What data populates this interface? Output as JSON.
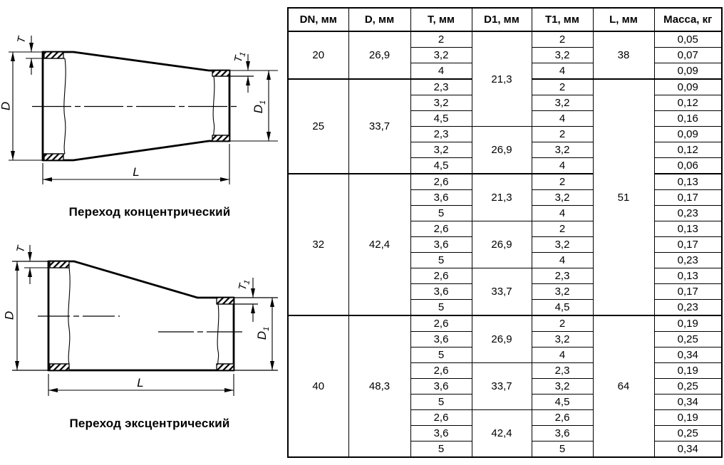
{
  "colors": {
    "line": "#000000",
    "text": "#000000",
    "background": "#ffffff"
  },
  "dim_labels": {
    "t": "T",
    "t1_main": "T",
    "t1_sub": "1",
    "d": "D",
    "d1_main": "D",
    "d1_sub": "1",
    "l": "L"
  },
  "diagrams": {
    "concentric": {
      "caption": "Переход концентрический"
    },
    "eccentric": {
      "caption": "Переход эксцентрический"
    }
  },
  "table": {
    "headers": [
      "DN, мм",
      "D, мм",
      "T, мм",
      "D1, мм",
      "T1, мм",
      "L, мм",
      "Масса, кг"
    ],
    "group_start_rows": [
      3,
      9,
      18
    ],
    "rows": [
      [
        {
          "t": "20",
          "rs": 3
        },
        {
          "t": "26,9",
          "rs": 3
        },
        {
          "t": "2"
        },
        {
          "t": "21,3",
          "rs": 6
        },
        {
          "t": "2"
        },
        {
          "t": "38",
          "rs": 3
        },
        {
          "t": "0,05"
        }
      ],
      [
        {
          "t": "3,2"
        },
        {
          "t": "3,2"
        },
        {
          "t": "0,07"
        }
      ],
      [
        {
          "t": "4"
        },
        {
          "t": "4"
        },
        {
          "t": "0,09"
        }
      ],
      [
        {
          "t": "25",
          "rs": 6
        },
        {
          "t": "33,7",
          "rs": 6
        },
        {
          "t": "2,3"
        },
        {
          "t": "2"
        },
        {
          "t": "51",
          "rs": 15
        },
        {
          "t": "0,09"
        }
      ],
      [
        {
          "t": "3,2"
        },
        {
          "t": "3,2"
        },
        {
          "t": "0,12"
        }
      ],
      [
        {
          "t": "4,5"
        },
        {
          "t": "4"
        },
        {
          "t": "0,16"
        }
      ],
      [
        {
          "t": "2,3"
        },
        {
          "t": "26,9",
          "rs": 3
        },
        {
          "t": "2"
        },
        {
          "t": "0,09"
        }
      ],
      [
        {
          "t": "3,2"
        },
        {
          "t": "3,2"
        },
        {
          "t": "0,12"
        }
      ],
      [
        {
          "t": "4,5"
        },
        {
          "t": "4"
        },
        {
          "t": "0,06"
        }
      ],
      [
        {
          "t": "32",
          "rs": 9
        },
        {
          "t": "42,4",
          "rs": 9
        },
        {
          "t": "2,6"
        },
        {
          "t": "21,3",
          "rs": 3
        },
        {
          "t": "2"
        },
        {
          "t": "0,13"
        }
      ],
      [
        {
          "t": "3,6"
        },
        {
          "t": "3,2"
        },
        {
          "t": "0,17"
        }
      ],
      [
        {
          "t": "5"
        },
        {
          "t": "4"
        },
        {
          "t": "0,23"
        }
      ],
      [
        {
          "t": "2,6"
        },
        {
          "t": "26,9",
          "rs": 3
        },
        {
          "t": "2"
        },
        {
          "t": "0,13"
        }
      ],
      [
        {
          "t": "3,6"
        },
        {
          "t": "3,2"
        },
        {
          "t": "0,17"
        }
      ],
      [
        {
          "t": "5"
        },
        {
          "t": "4"
        },
        {
          "t": "0,23"
        }
      ],
      [
        {
          "t": "2,6"
        },
        {
          "t": "33,7",
          "rs": 3
        },
        {
          "t": "2,3"
        },
        {
          "t": "0,13"
        }
      ],
      [
        {
          "t": "3,6"
        },
        {
          "t": "3,2"
        },
        {
          "t": "0,17"
        }
      ],
      [
        {
          "t": "5"
        },
        {
          "t": "4,5"
        },
        {
          "t": "0,23"
        }
      ],
      [
        {
          "t": "40",
          "rs": 9
        },
        {
          "t": "48,3",
          "rs": 9
        },
        {
          "t": "2,6"
        },
        {
          "t": "26,9",
          "rs": 3
        },
        {
          "t": "2"
        },
        {
          "t": "64",
          "rs": 9
        },
        {
          "t": "0,19"
        }
      ],
      [
        {
          "t": "3,6"
        },
        {
          "t": "3,2"
        },
        {
          "t": "0,25"
        }
      ],
      [
        {
          "t": "5"
        },
        {
          "t": "4"
        },
        {
          "t": "0,34"
        }
      ],
      [
        {
          "t": "2,6"
        },
        {
          "t": "33,7",
          "rs": 3
        },
        {
          "t": "2,3"
        },
        {
          "t": "0,19"
        }
      ],
      [
        {
          "t": "3,6"
        },
        {
          "t": "3,2"
        },
        {
          "t": "0,25"
        }
      ],
      [
        {
          "t": "5"
        },
        {
          "t": "4,5"
        },
        {
          "t": "0,34"
        }
      ],
      [
        {
          "t": "2,6"
        },
        {
          "t": "42,4",
          "rs": 3
        },
        {
          "t": "2,6"
        },
        {
          "t": "0,19"
        }
      ],
      [
        {
          "t": "3,6"
        },
        {
          "t": "3,6"
        },
        {
          "t": "0,25"
        }
      ],
      [
        {
          "t": "5"
        },
        {
          "t": "5"
        },
        {
          "t": "0,34"
        }
      ]
    ]
  }
}
